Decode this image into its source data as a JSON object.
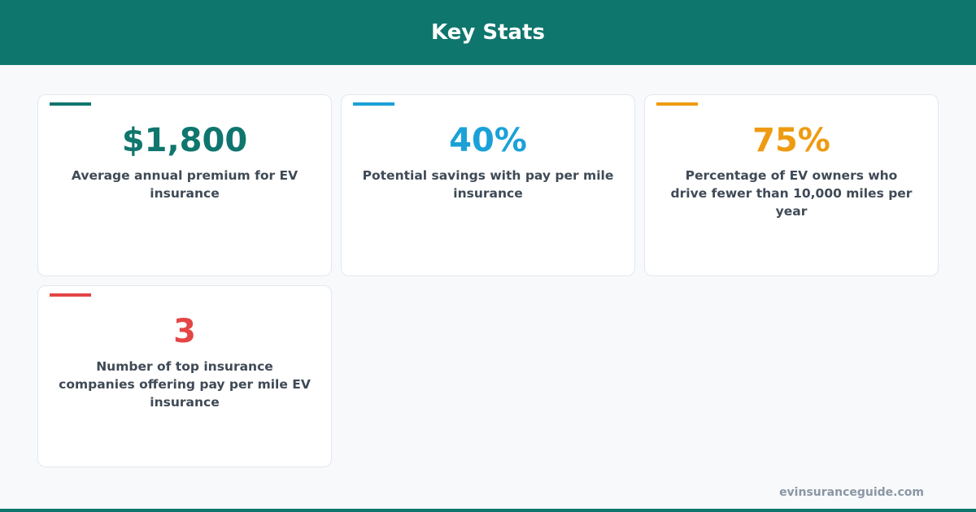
{
  "header": {
    "title": "Key Stats"
  },
  "cards": [
    {
      "value": "$1,800",
      "description": "Average annual premium for EV insurance",
      "color": "#0f766e"
    },
    {
      "value": "40%",
      "description": "Potential savings with pay per mile insurance",
      "color": "#1ba1d8"
    },
    {
      "value": "75%",
      "description": "Percentage of EV owners who drive fewer than 10,000 miles per year",
      "color": "#ee9b12"
    },
    {
      "value": "3",
      "description": "Number of top insurance companies offering pay per mile EV insurance",
      "color": "#e44545"
    }
  ],
  "footer": {
    "site": "evinsuranceguide.com"
  }
}
